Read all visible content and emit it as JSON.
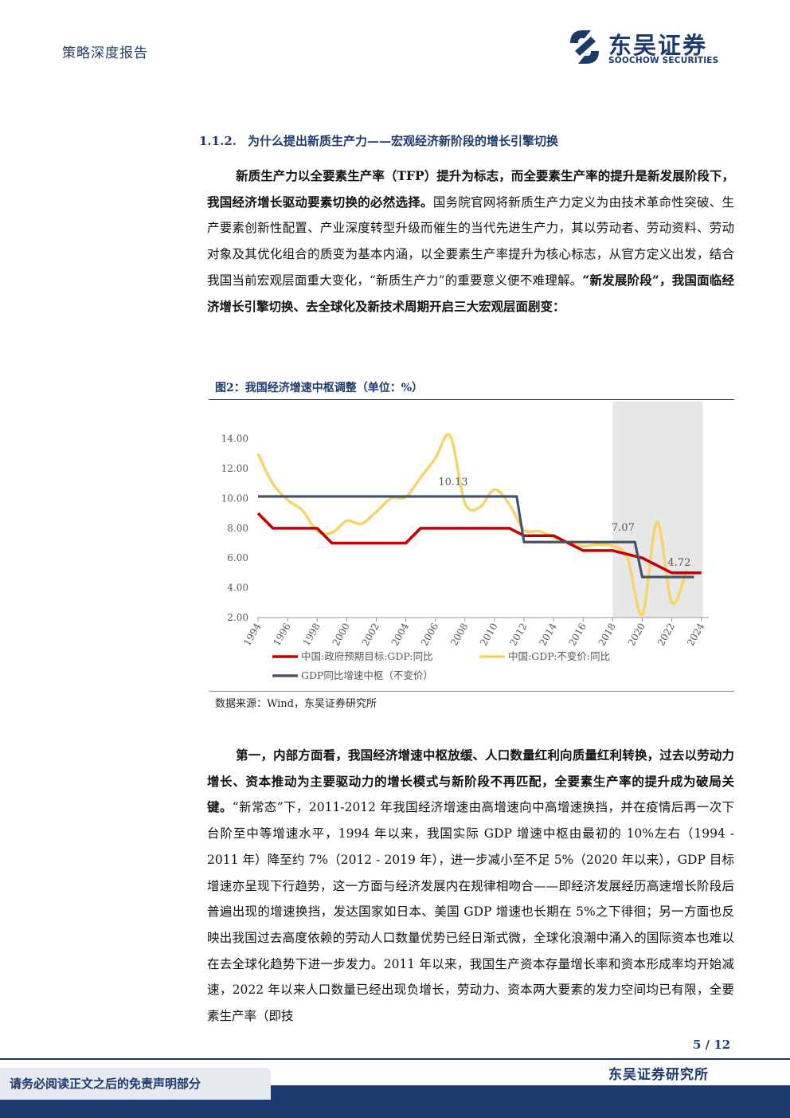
{
  "header": {
    "label": "策略深度报告"
  },
  "logo": {
    "name_cn": "东吴证券",
    "name_en": "SOOCHOW SECURITIES",
    "colors": {
      "primary": "#1d3a6e"
    }
  },
  "section": {
    "number": "1.1.2.",
    "title": "为什么提出新质生产力——宏观经济新阶段的增长引擎切换"
  },
  "para1": {
    "bold1": "新质生产力以全要素生产率（TFP）提升为标志，而全要素生产率的提升是新发展阶段下，我国经济增长驱动要素切换的必然选择。",
    "text1": "国务院官网将新质生产力定义为由技术革命性突破、生产要素创新性配置、产业深度转型升级而催生的当代先进生产力，其以劳动者、劳动资料、劳动对象及其优化组合的质变为基本内涵，以全要素生产率提升为核心标志，从官方定义出发，结合我国当前宏观层面重大变化，“新质生产力”的重要意义便不难理解。",
    "bold2": "“新发展阶段”，我国面临经济增长引擎切换、去全球化及新技术周期开启三大宏观层面剧变："
  },
  "figure": {
    "title": "图2：我国经济增速中枢调整（单位：%）",
    "source": "数据来源：Wind，东吴证券研究所"
  },
  "chart_data": {
    "type": "line",
    "title": "",
    "ylim": [
      2,
      15
    ],
    "yticks": [
      "2.00",
      "4.00",
      "6.00",
      "8.00",
      "10.00",
      "12.00",
      "14.00"
    ],
    "xticks": [
      "1994",
      "1996",
      "1998",
      "2000",
      "2002",
      "2004",
      "2006",
      "2008",
      "2010",
      "2012",
      "2014",
      "2016",
      "2018",
      "2020",
      "2022",
      "2024"
    ],
    "shaded_range": [
      2018,
      2024.1
    ],
    "colors": {
      "target": "#c00000",
      "gdp": "#f7d46a",
      "center": "#44546a",
      "shade": "#e7e7e7"
    },
    "series": [
      {
        "name": "中国:政府预期目标:GDP:同比",
        "x": [
          1994,
          1995,
          1996,
          1997,
          1998,
          1999,
          2000,
          2001,
          2002,
          2003,
          2004,
          2005,
          2006,
          2007,
          2008,
          2009,
          2010,
          2011,
          2012,
          2013,
          2014,
          2015,
          2016,
          2017,
          2018,
          2019,
          2020,
          2021,
          2022,
          2023,
          2024
        ],
        "values": [
          9.0,
          8.0,
          8.0,
          8.0,
          8.0,
          7.0,
          7.0,
          7.0,
          7.0,
          7.0,
          7.0,
          8.0,
          8.0,
          8.0,
          8.0,
          8.0,
          8.0,
          8.0,
          7.5,
          7.5,
          7.5,
          7.0,
          6.5,
          6.5,
          6.5,
          6.25,
          6.0,
          5.5,
          5.0,
          5.0,
          5.0
        ]
      },
      {
        "name": "中国:GDP:不变价:同比",
        "x": [
          1994,
          1995,
          1996,
          1997,
          1998,
          1999,
          2000,
          2001,
          2002,
          2003,
          2004,
          2005,
          2006,
          2007,
          2008,
          2009,
          2010,
          2011,
          2012,
          2013,
          2014,
          2015,
          2016,
          2017,
          2018,
          2019,
          2020,
          2021,
          2022,
          2023
        ],
        "values": [
          13.0,
          11.0,
          9.9,
          9.2,
          7.8,
          7.7,
          8.5,
          8.3,
          9.1,
          10.0,
          10.1,
          11.4,
          12.7,
          14.2,
          9.7,
          9.4,
          10.6,
          9.6,
          7.9,
          7.8,
          7.4,
          7.0,
          6.8,
          6.9,
          6.8,
          6.0,
          2.2,
          8.4,
          3.0,
          5.2
        ]
      },
      {
        "name": "GDP同比增速中枢（不变价）",
        "x": [
          1994,
          2011.5,
          2012,
          2019.5,
          2020,
          2023.5
        ],
        "values": [
          10.13,
          10.13,
          7.07,
          7.07,
          4.72,
          4.72
        ]
      }
    ],
    "annotations": [
      {
        "text": "10.13",
        "x": 2007.2,
        "y": 10.13
      },
      {
        "text": "7.07",
        "x": 2018.7,
        "y": 7.07
      },
      {
        "text": "4.72",
        "x": 2022.5,
        "y": 4.72
      }
    ],
    "legend": "bottom"
  },
  "para2": {
    "bold": "第一，内部方面看，我国经济增速中枢放缓、人口数量红利向质量红利转换，过去以劳动力增长、资本推动为主要驱动力的增长模式与新阶段不再匹配，全要素生产率的提升成为破局关键。",
    "text": "“新常态”下，2011-2012 年我国经济增速由高增速向中高增速换挡，并在疫情后再一次下台阶至中等增速水平，1994 年以来，我国实际 GDP 增速中枢由最初的 10%左右（1994 - 2011 年）降至约 7%（2012 - 2019 年），进一步减小至不足 5%（2020 年以来），GDP 目标增速亦呈现下行趋势，这一方面与经济发展内在规律相吻合——即经济发展经历高速增长阶段后普遍出现的增速换挡，发达国家如日本、美国 GDP 增速也长期在 5%之下徘徊；另一方面也反映出我国过去高度依赖的劳动人口数量优势已经日渐式微，全球化浪潮中涌入的国际资本也难以在去全球化趋势下进一步发力。2011 年以来，我国生产资本存量增长率和资本形成率均开始减速，2022 年以来人口数量已经出现负增长，劳动力、资本两大要素的发力空间均已有限，全要素生产率（即技"
  },
  "footer": {
    "page": "5 / 12",
    "org": "东吴证券研究所",
    "disclaimer": "请务必阅读正文之后的免责声明部分"
  }
}
